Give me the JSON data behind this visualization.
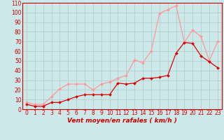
{
  "x": [
    0,
    1,
    2,
    3,
    4,
    5,
    6,
    7,
    8,
    9,
    10,
    11,
    12,
    13,
    14,
    15,
    16,
    17,
    18,
    19,
    20,
    21,
    22,
    23
  ],
  "rafales": [
    7,
    5,
    5,
    13,
    21,
    26,
    26,
    26,
    20,
    26,
    28,
    32,
    35,
    51,
    48,
    60,
    99,
    103,
    107,
    69,
    82,
    75,
    50,
    70
  ],
  "moyen": [
    5,
    3,
    3,
    7,
    7,
    10,
    13,
    15,
    15,
    15,
    15,
    27,
    26,
    27,
    32,
    32,
    33,
    35,
    58,
    69,
    68,
    55,
    49,
    43
  ],
  "background": "#cce8e8",
  "grid_color": "#b0c8c8",
  "line_color_rafales": "#ff9999",
  "line_color_moyen": "#dd0000",
  "xlabel": "Vent moyen/en rafales ( km/h )",
  "ylim": [
    0,
    110
  ],
  "yticks": [
    0,
    10,
    20,
    30,
    40,
    50,
    60,
    70,
    80,
    90,
    100,
    110
  ],
  "xlabel_color": "#cc0000",
  "axis_label_fontsize": 6.5,
  "tick_fontsize": 5.5
}
